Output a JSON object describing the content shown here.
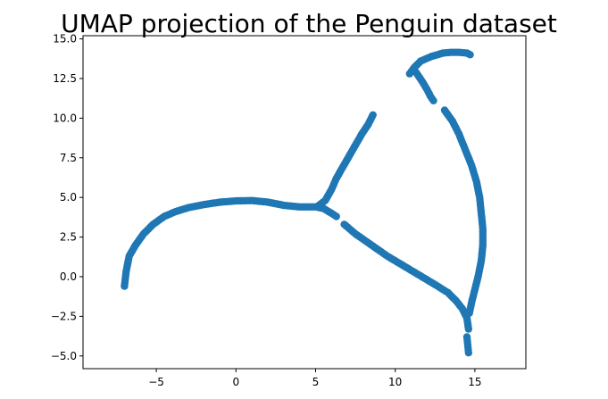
{
  "chart_data": {
    "type": "scatter",
    "title": "UMAP projection of the Penguin dataset",
    "xlabel": "",
    "ylabel": "",
    "xlim": [
      -9.6,
      18.2
    ],
    "ylim": [
      -5.8,
      15.2
    ],
    "xticks": [
      -5,
      0,
      5,
      10,
      15
    ],
    "yticks": [
      -5.0,
      -2.5,
      0.0,
      2.5,
      5.0,
      7.5,
      10.0,
      12.5,
      15.0
    ],
    "xtick_labels": [
      "−5",
      "0",
      "5",
      "10",
      "15"
    ],
    "ytick_labels": [
      "−5.0",
      "−2.5",
      "0.0",
      "2.5",
      "5.0",
      "7.5",
      "10.0",
      "12.5",
      "15.0"
    ],
    "grid": false,
    "legend": "none",
    "point_color": "#1f77b4",
    "segments": [
      {
        "name": "left-arc",
        "points": [
          [
            -7.0,
            -0.6
          ],
          [
            -6.9,
            0.3
          ],
          [
            -6.7,
            1.3
          ],
          [
            -6.3,
            2.0
          ],
          [
            -5.8,
            2.7
          ],
          [
            -5.2,
            3.3
          ],
          [
            -4.5,
            3.8
          ],
          [
            -3.8,
            4.1
          ],
          [
            -3.0,
            4.35
          ],
          [
            -2.0,
            4.55
          ],
          [
            -1.0,
            4.7
          ],
          [
            0.0,
            4.78
          ],
          [
            1.0,
            4.8
          ],
          [
            2.0,
            4.7
          ],
          [
            3.0,
            4.5
          ],
          [
            4.0,
            4.4
          ],
          [
            5.0,
            4.4
          ],
          [
            5.5,
            4.3
          ],
          [
            6.0,
            4.0
          ],
          [
            6.3,
            3.8
          ]
        ]
      },
      {
        "name": "upper-diagonal-branch",
        "points": [
          [
            5.2,
            4.5
          ],
          [
            5.6,
            4.8
          ],
          [
            6.0,
            5.5
          ],
          [
            6.3,
            6.2
          ],
          [
            6.7,
            6.9
          ],
          [
            7.1,
            7.6
          ],
          [
            7.5,
            8.3
          ],
          [
            7.9,
            9.0
          ],
          [
            8.3,
            9.6
          ],
          [
            8.6,
            10.2
          ]
        ]
      },
      {
        "name": "lower-diagonal-branch",
        "points": [
          [
            6.8,
            3.3
          ],
          [
            7.5,
            2.7
          ],
          [
            8.5,
            2.0
          ],
          [
            9.5,
            1.3
          ],
          [
            10.5,
            0.7
          ],
          [
            11.5,
            0.1
          ],
          [
            12.5,
            -0.5
          ],
          [
            13.3,
            -1.0
          ],
          [
            13.8,
            -1.5
          ],
          [
            14.2,
            -2.0
          ],
          [
            14.5,
            -2.6
          ],
          [
            14.6,
            -3.3
          ]
        ]
      },
      {
        "name": "bottom-tail",
        "points": [
          [
            14.5,
            -3.8
          ],
          [
            14.55,
            -4.3
          ],
          [
            14.6,
            -4.8
          ]
        ]
      },
      {
        "name": "right-arc",
        "points": [
          [
            13.1,
            10.5
          ],
          [
            13.6,
            9.8
          ],
          [
            14.0,
            9.0
          ],
          [
            14.4,
            8.0
          ],
          [
            14.8,
            7.0
          ],
          [
            15.1,
            6.0
          ],
          [
            15.3,
            5.0
          ],
          [
            15.4,
            4.0
          ],
          [
            15.5,
            3.0
          ],
          [
            15.5,
            2.0
          ],
          [
            15.4,
            1.0
          ],
          [
            15.2,
            0.0
          ],
          [
            15.0,
            -0.8
          ],
          [
            14.8,
            -1.6
          ],
          [
            14.65,
            -2.3
          ]
        ]
      },
      {
        "name": "top-hook",
        "points": [
          [
            10.9,
            12.8
          ],
          [
            11.2,
            13.2
          ],
          [
            11.6,
            13.6
          ],
          [
            12.3,
            13.9
          ],
          [
            13.0,
            14.1
          ],
          [
            13.5,
            14.15
          ],
          [
            14.0,
            14.15
          ],
          [
            14.5,
            14.1
          ],
          [
            14.7,
            14.0
          ]
        ]
      },
      {
        "name": "hook-return",
        "points": [
          [
            11.3,
            12.9
          ],
          [
            11.7,
            12.3
          ],
          [
            12.0,
            11.8
          ],
          [
            12.2,
            11.4
          ],
          [
            12.4,
            11.1
          ]
        ]
      }
    ]
  }
}
